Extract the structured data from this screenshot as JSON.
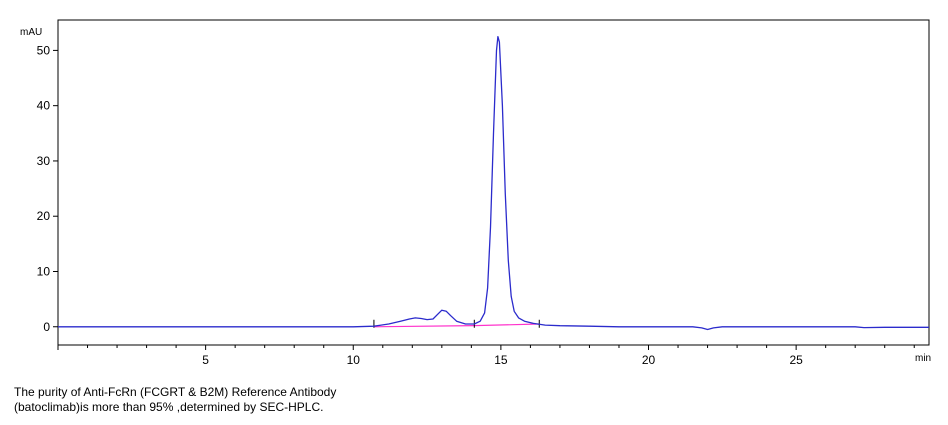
{
  "chart_data": {
    "type": "line",
    "title": "",
    "xlabel": "min",
    "ylabel": "mAU",
    "xlim": [
      0,
      29.5
    ],
    "ylim": [
      -3.3,
      55.5
    ],
    "x_ticks": [
      5,
      10,
      15,
      20,
      25
    ],
    "y_ticks": [
      0,
      10,
      20,
      30,
      40,
      50
    ],
    "grid": false,
    "series": [
      {
        "color": "#2b2bcc",
        "x": [
          0,
          5,
          10,
          10.7,
          11.2,
          11.6,
          11.9,
          12.1,
          12.3,
          12.5,
          12.7,
          12.85,
          13.0,
          13.15,
          13.3,
          13.5,
          13.8,
          14.1,
          14.3,
          14.45,
          14.55,
          14.65,
          14.75,
          14.85,
          14.9,
          14.95,
          15.05,
          15.15,
          15.25,
          15.35,
          15.45,
          15.6,
          15.8,
          16.1,
          16.5,
          17,
          18,
          19,
          20,
          21,
          21.5,
          21.8,
          22.0,
          22.2,
          22.5,
          23,
          25,
          27,
          27.3,
          28,
          29.5
        ],
        "y": [
          0,
          0,
          0,
          0.1,
          0.5,
          1.0,
          1.4,
          1.6,
          1.5,
          1.3,
          1.4,
          2.2,
          3.0,
          2.8,
          2.0,
          1.0,
          0.5,
          0.5,
          1.0,
          2.5,
          7,
          18,
          35,
          50,
          52.5,
          51.5,
          40,
          24,
          12,
          5.5,
          2.8,
          1.6,
          1.0,
          0.6,
          0.3,
          0.2,
          0.1,
          0,
          0,
          0,
          0,
          -0.2,
          -0.5,
          -0.2,
          0,
          0,
          0,
          0,
          -0.15,
          -0.1,
          -0.1
        ]
      }
    ],
    "baseline": {
      "color": "#ff33cc",
      "x": [
        10.7,
        14.1,
        16.3
      ],
      "y": [
        0,
        0.2,
        0.5
      ]
    },
    "integration_marks_x": [
      10.7,
      14.1,
      16.3
    ]
  },
  "caption": {
    "line1": "The purity of Anti-FcRn (FCGRT & B2M) Reference Antibody",
    "line2": "(batoclimab)is more than 95% ,determined by SEC-HPLC."
  }
}
